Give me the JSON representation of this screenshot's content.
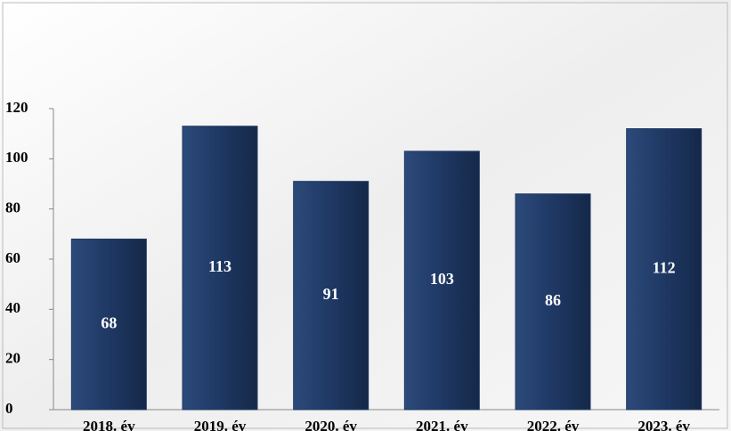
{
  "chart_data": {
    "type": "bar",
    "categories": [
      "2018. év",
      "2019. év",
      "2020. év",
      "2021. év",
      "2022. év",
      "2023. év"
    ],
    "values": [
      68,
      113,
      91,
      103,
      86,
      112
    ],
    "color": "#1f3864",
    "ylim": [
      0,
      120
    ],
    "yticks": [
      0,
      20,
      40,
      60,
      80,
      100,
      120
    ]
  }
}
